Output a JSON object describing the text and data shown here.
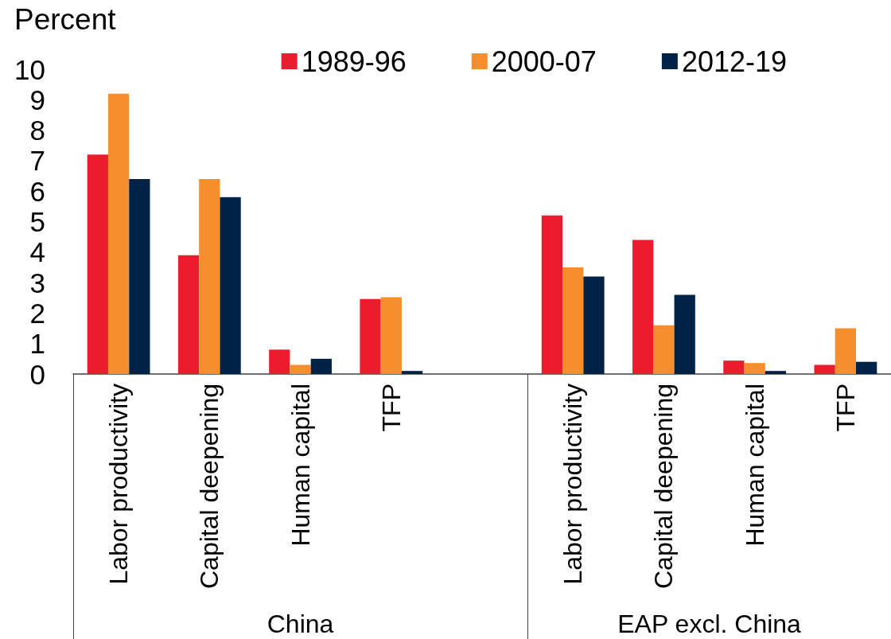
{
  "chart_data": {
    "type": "bar",
    "ylabel": "Percent",
    "categories": [
      "Labor productivity",
      "Capital deepening",
      "Human capital",
      "TFP",
      null,
      "Labor productivity",
      "Capital deepening",
      "Human capital",
      "TFP"
    ],
    "series": [
      {
        "name": "1989-96",
        "color": "#ec1c2f",
        "values": [
          7.2,
          3.9,
          0.8,
          2.46,
          null,
          5.2,
          4.4,
          0.44,
          0.3
        ]
      },
      {
        "name": "2000-07",
        "color": "#f68e2d",
        "values": [
          9.2,
          6.4,
          0.3,
          2.52,
          null,
          3.5,
          1.6,
          0.36,
          1.5
        ]
      },
      {
        "name": "2012-19",
        "color": "#002247",
        "values": [
          6.4,
          5.8,
          0.5,
          0.1,
          null,
          3.2,
          2.6,
          0.1,
          0.4
        ]
      }
    ],
    "ylim": [
      0,
      10
    ],
    "yticks": [
      0,
      1,
      2,
      3,
      4,
      5,
      6,
      7,
      8,
      9,
      10
    ],
    "grid": false,
    "legend": "top",
    "annotations": [
      "China",
      "EAP excl. China"
    ]
  }
}
